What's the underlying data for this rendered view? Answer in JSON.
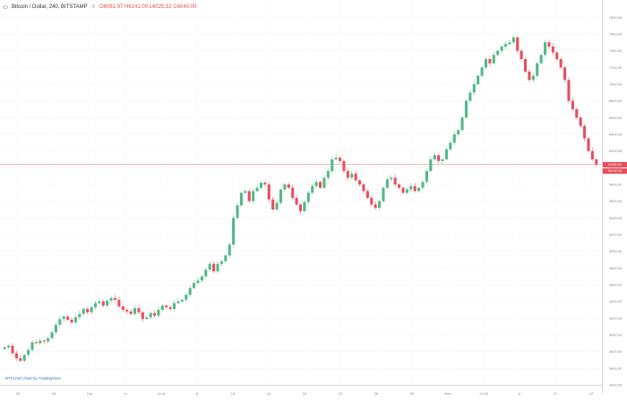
{
  "header": {
    "title": "Bitcoin / Dollar, 240, BITSTAMP",
    "ohlc_text": "O6081.97 H6141.00 L6025.52 C6040.00"
  },
  "price_axis": {
    "labels": [
      "7800.00",
      "7600.00",
      "7400.00",
      "7200.00",
      "7000.00",
      "6800.00",
      "6600.00",
      "6400.00",
      "6200.00",
      "6000.00",
      "5800.00",
      "5600.00",
      "5400.00",
      "5200.00",
      "5000.00",
      "4800.00",
      "4600.00",
      "4400.00",
      "4200.00",
      "4000.00",
      "3800.00",
      "3600.00",
      "3400.00"
    ],
    "current_price_label": "6040.00",
    "countdown_label": "03:00:18"
  },
  "time_axis": {
    "labels": [
      "25",
      "28",
      "Oct",
      "4",
      "11:00",
      "8",
      "13",
      "16",
      "19",
      "22",
      "26",
      "29",
      "Nov",
      "12:00",
      "6",
      "9",
      "12"
    ]
  },
  "watermark": "BTCUSD chart by TradingView",
  "colors": {
    "up": "#53b987",
    "down": "#eb4d5c",
    "price_line": "#e0a9a9",
    "tag_up": "#eb4d5c"
  },
  "chart_data": {
    "type": "candlestick",
    "y_range": [
      3400,
      7900
    ],
    "last_price": 6040.0,
    "series": [
      {
        "name": "BTCUSD",
        "closes": [
          3850,
          3870,
          3780,
          3720,
          3690,
          3760,
          3820,
          3910,
          3900,
          3930,
          3920,
          3960,
          4030,
          4120,
          4190,
          4220,
          4180,
          4150,
          4210,
          4250,
          4310,
          4270,
          4330,
          4380,
          4400,
          4350,
          4410,
          4440,
          4420,
          4340,
          4300,
          4280,
          4250,
          4320,
          4270,
          4190,
          4210,
          4260,
          4230,
          4300,
          4350,
          4330,
          4310,
          4380,
          4400,
          4420,
          4480,
          4560,
          4620,
          4650,
          4700,
          4780,
          4850,
          4760,
          4850,
          4880,
          4950,
          5080,
          5400,
          5550,
          5700,
          5720,
          5600,
          5720,
          5760,
          5820,
          5800,
          5620,
          5500,
          5580,
          5740,
          5800,
          5760,
          5640,
          5560,
          5480,
          5590,
          5700,
          5780,
          5830,
          5760,
          5880,
          5960,
          6100,
          6120,
          6080,
          5960,
          5880,
          5930,
          5850,
          5800,
          5720,
          5640,
          5560,
          5520,
          5600,
          5760,
          5860,
          5880,
          5800,
          5760,
          5700,
          5740,
          5780,
          5720,
          5760,
          5830,
          5960,
          6100,
          6150,
          6080,
          6100,
          6220,
          6300,
          6400,
          6450,
          6600,
          6800,
          6900,
          7000,
          7100,
          7200,
          7300,
          7250,
          7350,
          7400,
          7450,
          7480,
          7500,
          7560,
          7400,
          7300,
          7150,
          7050,
          7100,
          7250,
          7350,
          7500,
          7450,
          7380,
          7300,
          7200,
          7050,
          6800,
          6700,
          6600,
          6500,
          6350,
          6200,
          6100,
          6040
        ]
      }
    ]
  }
}
